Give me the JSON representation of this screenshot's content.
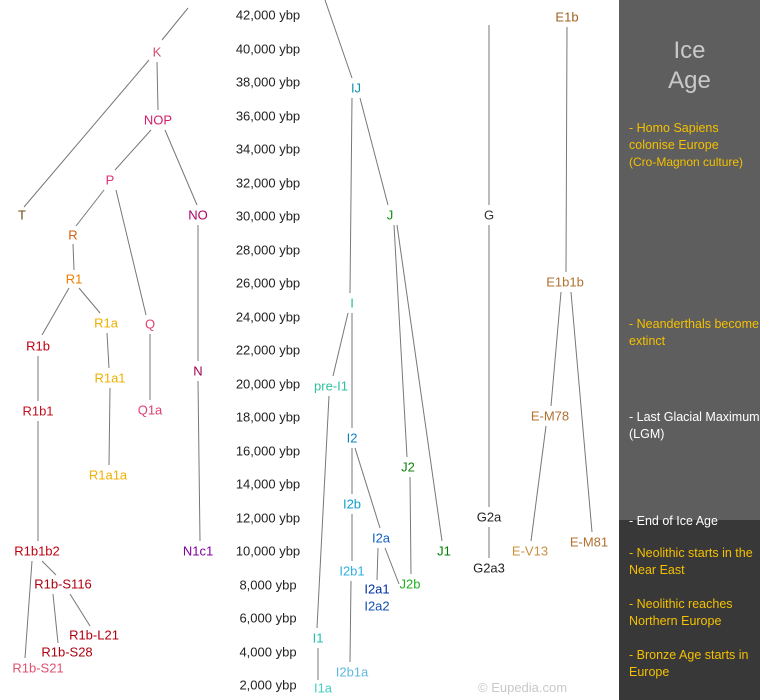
{
  "time_axis": {
    "ticks": [
      "42,000 ybp",
      "40,000 ybp",
      "38,000 ybp",
      "36,000 ybp",
      "34,000 ybp",
      "32,000 ybp",
      "30,000 ybp",
      "28,000 ybp",
      "26,000 ybp",
      "24,000 ybp",
      "22,000 ybp",
      "20,000 ybp",
      "18,000 ybp",
      "16,000 ybp",
      "14,000 ybp",
      "12,000 ybp",
      "10,000 ybp",
      "8,000 ybp",
      "6,000 ybp",
      "4,000 ybp",
      "2,000 ybp"
    ]
  },
  "haplogroups": [
    {
      "id": "K",
      "label": "K",
      "color": "#d05070"
    },
    {
      "id": "NOP",
      "label": "NOP",
      "color": "#d0206a"
    },
    {
      "id": "P",
      "label": "P",
      "color": "#e0307a"
    },
    {
      "id": "T",
      "label": "T",
      "color": "#6b4a10"
    },
    {
      "id": "NO",
      "label": "NO",
      "color": "#b00060"
    },
    {
      "id": "R",
      "label": "R",
      "color": "#d06010"
    },
    {
      "id": "R1",
      "label": "R1",
      "color": "#f07f00"
    },
    {
      "id": "R1a",
      "label": "R1a",
      "color": "#f0b000"
    },
    {
      "id": "Q",
      "label": "Q",
      "color": "#e04070"
    },
    {
      "id": "R1b",
      "label": "R1b",
      "color": "#c00010"
    },
    {
      "id": "N",
      "label": "N",
      "color": "#a00050"
    },
    {
      "id": "R1a1",
      "label": "R1a1",
      "color": "#f0b000"
    },
    {
      "id": "Q1a",
      "label": "Q1a",
      "color": "#e04070"
    },
    {
      "id": "R1b1",
      "label": "R1b1",
      "color": "#c01020"
    },
    {
      "id": "R1a1a",
      "label": "R1a1a",
      "color": "#f0b000"
    },
    {
      "id": "R1b1b2",
      "label": "R1b1b2",
      "color": "#c00010"
    },
    {
      "id": "N1c1",
      "label": "N1c1",
      "color": "#8000a0"
    },
    {
      "id": "R1b-S116",
      "label": "R1b-S116",
      "color": "#b00010"
    },
    {
      "id": "R1b-L21",
      "label": "R1b-L21",
      "color": "#b00010"
    },
    {
      "id": "R1b-S28",
      "label": "R1b-S28",
      "color": "#b00010"
    },
    {
      "id": "R1b-S21",
      "label": "R1b-S21",
      "color": "#e05070"
    },
    {
      "id": "IJ",
      "label": "IJ",
      "color": "#1090b0"
    },
    {
      "id": "J",
      "label": "J",
      "color": "#109010"
    },
    {
      "id": "I",
      "label": "I",
      "color": "#20c090"
    },
    {
      "id": "pre-I1",
      "label": "pre-I1",
      "color": "#30c0a0"
    },
    {
      "id": "I2",
      "label": "I2",
      "color": "#1080c0"
    },
    {
      "id": "J2",
      "label": "J2",
      "color": "#108010"
    },
    {
      "id": "I2b",
      "label": "I2b",
      "color": "#10a0d0"
    },
    {
      "id": "I2a",
      "label": "I2a",
      "color": "#1060c0"
    },
    {
      "id": "J1",
      "label": "J1",
      "color": "#008000"
    },
    {
      "id": "I2b1",
      "label": "I2b1",
      "color": "#30b0e0"
    },
    {
      "id": "I2a1",
      "label": "I2a1",
      "color": "#0030a0"
    },
    {
      "id": "I2a2",
      "label": "I2a2",
      "color": "#1050b0"
    },
    {
      "id": "J2b",
      "label": "J2b",
      "color": "#20b020"
    },
    {
      "id": "I1",
      "label": "I1",
      "color": "#20c0b0"
    },
    {
      "id": "I2b1a",
      "label": "I2b1a",
      "color": "#60b8e0"
    },
    {
      "id": "I1a",
      "label": "I1a",
      "color": "#40d0c0"
    },
    {
      "id": "G",
      "label": "G",
      "color": "#333333"
    },
    {
      "id": "G2a",
      "label": "G2a",
      "color": "#222222"
    },
    {
      "id": "G2a3",
      "label": "G2a3",
      "color": "#222222"
    },
    {
      "id": "E1b",
      "label": "E1b",
      "color": "#a06020"
    },
    {
      "id": "E1b1b",
      "label": "E1b1b",
      "color": "#b07030"
    },
    {
      "id": "E-M78",
      "label": "E-M78",
      "color": "#b07030"
    },
    {
      "id": "E-V13",
      "label": "E-V13",
      "color": "#c89040"
    },
    {
      "id": "E-M81",
      "label": "E-M81",
      "color": "#b07030"
    }
  ],
  "side_panel": {
    "title_line1": "Ice",
    "title_line2": "Age",
    "events": [
      {
        "text": "- Homo Sapiens colonise Europe",
        "sub": "(Cro-Magnon culture)",
        "color": "#f5c000"
      },
      {
        "text": "- Neanderthals become extinct",
        "sub": "",
        "color": "#f5c000"
      },
      {
        "text": "- Last Glacial Maximum (LGM)",
        "sub": "",
        "color": "#ffffff"
      },
      {
        "text": "- End of Ice Age",
        "sub": "",
        "color": "#ffffff"
      },
      {
        "text": "- Neolithic starts in the Near East",
        "sub": "",
        "color": "#f5c000"
      },
      {
        "text": "- Neolithic reaches Northern Europe",
        "sub": "",
        "color": "#f5c000"
      },
      {
        "text": "- Bronze Age starts in Europe",
        "sub": "",
        "color": "#f5c000"
      }
    ]
  },
  "credit": "© Eupedia.com"
}
